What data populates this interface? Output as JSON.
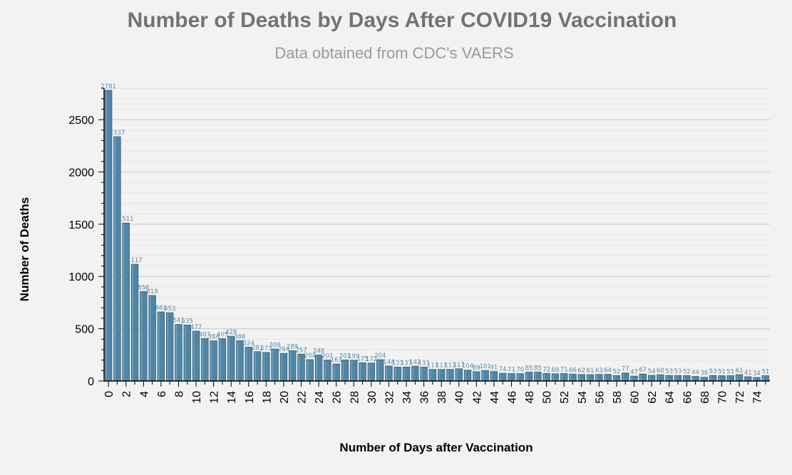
{
  "header": {
    "title": "Number of Deaths by Days After COVID19 Vaccination",
    "subtitle": "Data obtained from CDC's VAERS"
  },
  "colors": {
    "background": "#f2f2f2",
    "bar_fill": "#4f86a6",
    "bar_edge": "#2f5f7a",
    "gridline_major": "#c8c8c8",
    "gridline_minor": "#e4e4e4",
    "bar_label": "#5b8ba6"
  },
  "chart_data": {
    "type": "bar",
    "title": "Number of Deaths by Days After COVID19 Vaccination",
    "subtitle": "Data obtained from CDC's VAERS",
    "xlabel": "Number of Days after Vaccination",
    "ylabel": "Number of Deaths",
    "categories": [
      0,
      1,
      2,
      3,
      4,
      5,
      6,
      7,
      8,
      9,
      10,
      11,
      12,
      13,
      14,
      15,
      16,
      17,
      18,
      19,
      20,
      21,
      22,
      23,
      24,
      25,
      26,
      27,
      28,
      29,
      30,
      31,
      32,
      33,
      34,
      35,
      36,
      37,
      38,
      39,
      40,
      41,
      42,
      43,
      44,
      45,
      46,
      47,
      48,
      49,
      50,
      51,
      52,
      53,
      54,
      55,
      56,
      57,
      58,
      59,
      60,
      61,
      62,
      63,
      64,
      65,
      66,
      67,
      68,
      69,
      70,
      71,
      72,
      73,
      74,
      75
    ],
    "values": [
      2781,
      2337,
      1511,
      1117,
      856,
      818,
      661,
      653,
      541,
      535,
      477,
      407,
      384,
      405,
      428,
      386,
      324,
      281,
      273,
      306,
      264,
      289,
      257,
      204,
      248,
      201,
      163,
      201,
      199,
      175,
      172,
      204,
      144,
      133,
      133,
      142,
      133,
      111,
      111,
      111,
      117,
      104,
      89,
      101,
      91,
      74,
      71,
      70,
      85,
      85,
      72,
      69,
      71,
      66,
      62,
      61,
      63,
      64,
      52,
      77,
      47,
      67,
      54,
      60,
      53,
      53,
      52,
      44,
      36,
      53,
      51,
      51,
      61,
      41,
      34,
      51
    ],
    "ylim": [
      0,
      2800
    ],
    "yticks": [
      0,
      500,
      1000,
      1500,
      2000,
      2500
    ],
    "xticks": [
      0,
      2,
      4,
      6,
      8,
      10,
      12,
      14,
      16,
      18,
      20,
      22,
      24,
      26,
      28,
      30,
      32,
      34,
      36,
      38,
      40,
      42,
      44,
      46,
      48,
      50,
      52,
      54,
      56,
      58,
      60,
      62,
      64,
      66,
      68,
      70,
      72,
      74
    ],
    "grid": true,
    "legend": "none"
  }
}
